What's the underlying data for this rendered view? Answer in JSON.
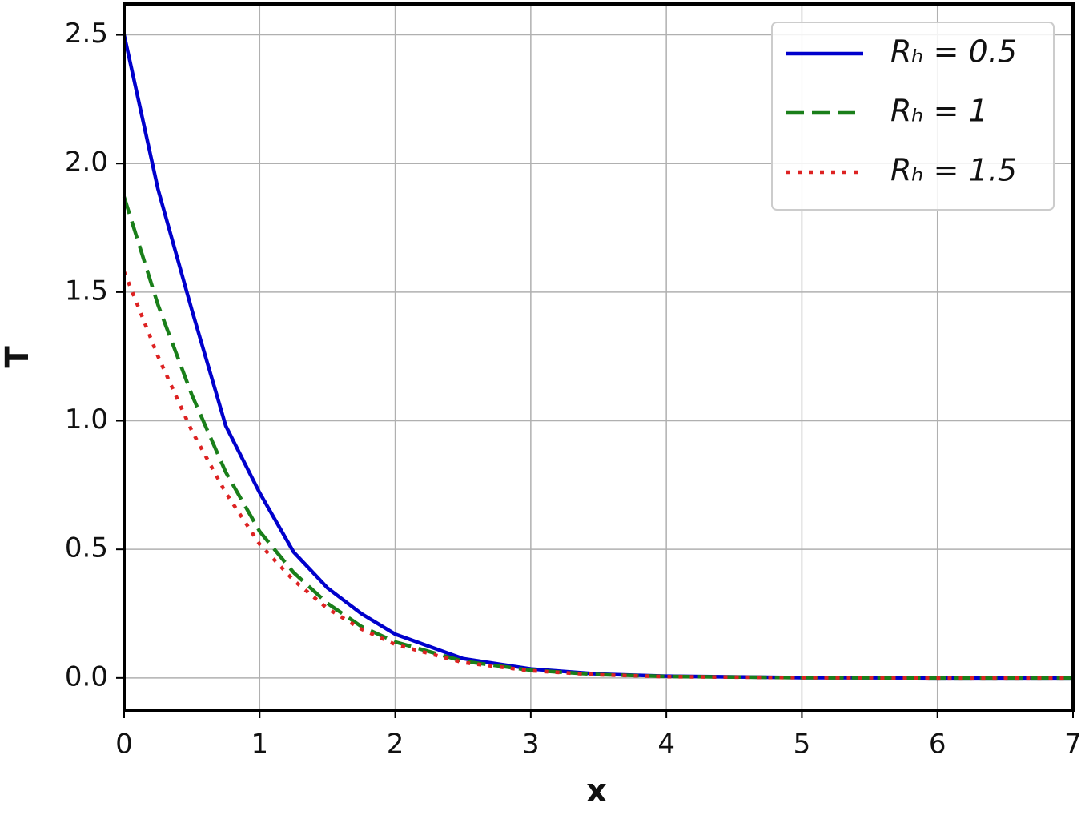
{
  "chart_data": {
    "type": "line",
    "xlabel": "x",
    "ylabel": "T",
    "x": [
      0,
      0.25,
      0.5,
      0.75,
      1,
      1.25,
      1.5,
      1.75,
      2,
      2.5,
      3,
      3.5,
      4,
      5,
      6,
      7
    ],
    "series": [
      {
        "name": "Rₕ = 0.5",
        "color": "#0000cc",
        "dash": "solid",
        "values": [
          2.5,
          1.9,
          1.43,
          0.98,
          0.72,
          0.49,
          0.35,
          0.25,
          0.17,
          0.075,
          0.035,
          0.015,
          0.007,
          0.001,
          0,
          0
        ]
      },
      {
        "name": "Rₕ = 1",
        "color": "#1a7f1a",
        "dash": "dashed",
        "values": [
          1.87,
          1.45,
          1.1,
          0.8,
          0.57,
          0.41,
          0.29,
          0.2,
          0.14,
          0.065,
          0.03,
          0.013,
          0.006,
          0.001,
          0,
          0
        ]
      },
      {
        "name": "Rₕ = 1.5",
        "color": "#dd2222",
        "dash": "dotted",
        "values": [
          1.58,
          1.25,
          0.96,
          0.72,
          0.52,
          0.38,
          0.27,
          0.19,
          0.13,
          0.06,
          0.028,
          0.012,
          0.005,
          0.001,
          0,
          0
        ]
      }
    ],
    "xlim": [
      0,
      7
    ],
    "xticks": [
      0,
      1,
      2,
      3,
      4,
      5,
      6,
      7
    ],
    "ylim": [
      -0.125,
      2.62
    ],
    "yticks": [
      {
        "value": 0,
        "label": "0.0"
      },
      0.5,
      {
        "value": 1,
        "label": "1.0"
      },
      1.5,
      {
        "value": 2,
        "label": "2.0"
      },
      2.5
    ],
    "grid": true,
    "legend": "upper right"
  }
}
